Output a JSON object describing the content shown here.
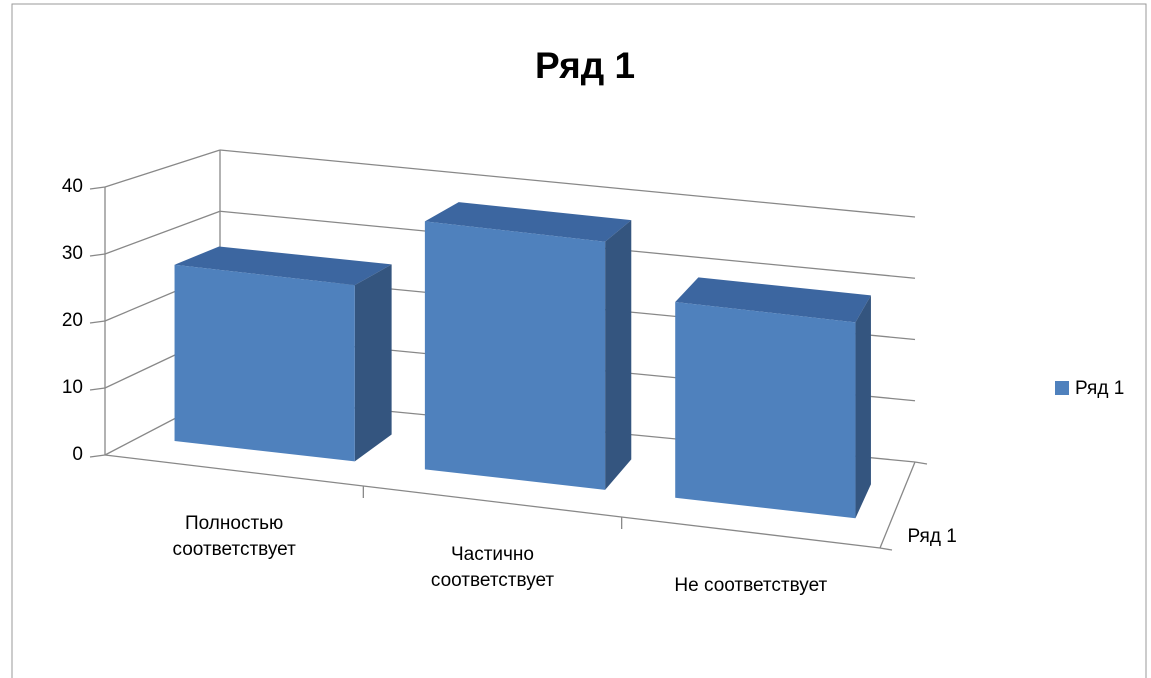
{
  "chart_data": {
    "type": "bar3d",
    "title": "Ряд 1",
    "categories": [
      "Полностью соответствует",
      "Частично соответствует",
      "Не соответствует"
    ],
    "series": [
      {
        "name": "Ряд 1",
        "color": "#4f81bd",
        "values": [
          27,
          38,
          30
        ]
      }
    ],
    "depth_label": "Ряд 1",
    "ylim": [
      0,
      40
    ],
    "yticks": [
      0,
      10,
      20,
      30,
      40
    ],
    "grid": true,
    "legend": "right"
  }
}
